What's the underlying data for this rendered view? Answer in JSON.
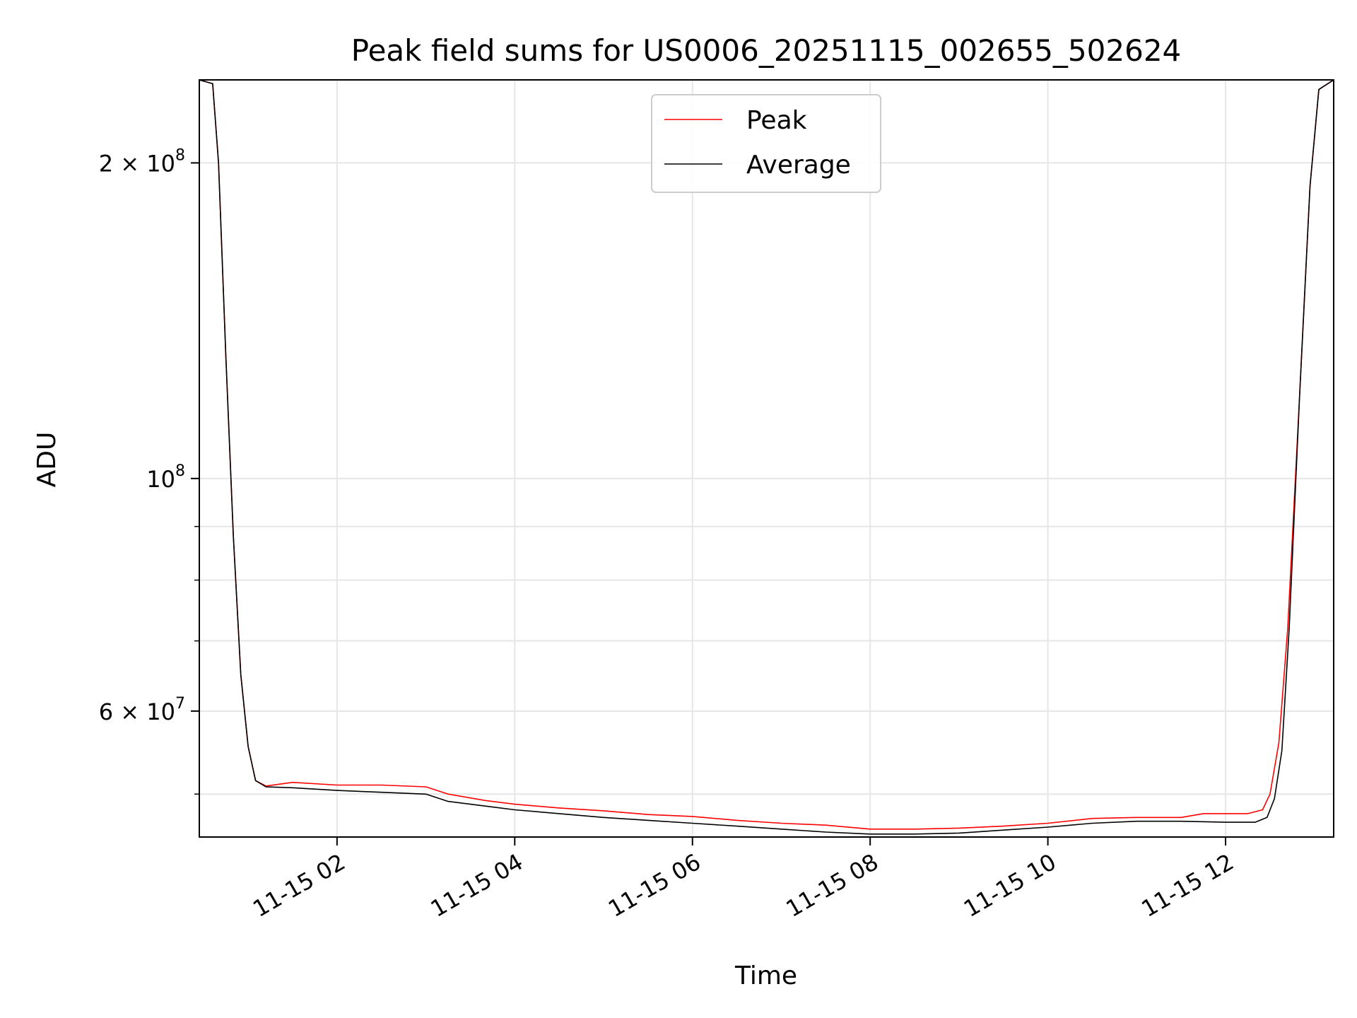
{
  "chart_data": {
    "type": "line",
    "title": "Peak field sums for US0006_20251115_002655_502624",
    "xlabel": "Time",
    "ylabel": "ADU",
    "y_scale": "log",
    "grid": true,
    "legend_placement": "upper center",
    "xlim": [
      "2025-11-15 00:27",
      "2025-11-15 13:13"
    ],
    "ylim": [
      45500000,
      240000000
    ],
    "x_ticks": [
      {
        "value": "2025-11-15 02:00",
        "label": "11-15 02"
      },
      {
        "value": "2025-11-15 04:00",
        "label": "11-15 04"
      },
      {
        "value": "2025-11-15 06:00",
        "label": "11-15 06"
      },
      {
        "value": "2025-11-15 08:00",
        "label": "11-15 08"
      },
      {
        "value": "2025-11-15 10:00",
        "label": "11-15 10"
      },
      {
        "value": "2025-11-15 12:00",
        "label": "11-15 12"
      }
    ],
    "y_ticks": [
      {
        "value": 200000000,
        "mantissa": "2 × 10",
        "exp": "8"
      },
      {
        "value": 100000000,
        "mantissa": "10",
        "exp": "8"
      },
      {
        "value": 60000000,
        "mantissa": "6 × 10",
        "exp": "7"
      }
    ],
    "y_minor_ticks": [
      50000000,
      70000000,
      80000000,
      90000000
    ],
    "series": [
      {
        "name": "Peak",
        "color": "#ff0000",
        "points": [
          [
            "2025-11-15 00:27",
            240000000
          ],
          [
            "2025-11-15 00:36",
            238000000
          ],
          [
            "2025-11-15 00:40",
            200000000
          ],
          [
            "2025-11-15 00:45",
            130000000
          ],
          [
            "2025-11-15 00:50",
            88000000
          ],
          [
            "2025-11-15 00:55",
            65000000
          ],
          [
            "2025-11-15 01:00",
            55500000
          ],
          [
            "2025-11-15 01:05",
            51500000
          ],
          [
            "2025-11-15 01:12",
            50900000
          ],
          [
            "2025-11-15 01:30",
            51300000
          ],
          [
            "2025-11-15 02:00",
            51000000
          ],
          [
            "2025-11-15 02:30",
            51000000
          ],
          [
            "2025-11-15 03:00",
            50800000
          ],
          [
            "2025-11-15 03:15",
            50000000
          ],
          [
            "2025-11-15 03:40",
            49300000
          ],
          [
            "2025-11-15 04:00",
            48900000
          ],
          [
            "2025-11-15 04:30",
            48500000
          ],
          [
            "2025-11-15 05:00",
            48200000
          ],
          [
            "2025-11-15 05:30",
            47800000
          ],
          [
            "2025-11-15 06:00",
            47600000
          ],
          [
            "2025-11-15 06:30",
            47200000
          ],
          [
            "2025-11-15 07:00",
            46900000
          ],
          [
            "2025-11-15 07:30",
            46700000
          ],
          [
            "2025-11-15 08:00",
            46300000
          ],
          [
            "2025-11-15 08:30",
            46300000
          ],
          [
            "2025-11-15 09:00",
            46400000
          ],
          [
            "2025-11-15 09:30",
            46600000
          ],
          [
            "2025-11-15 10:00",
            46900000
          ],
          [
            "2025-11-15 10:30",
            47400000
          ],
          [
            "2025-11-15 11:00",
            47500000
          ],
          [
            "2025-11-15 11:30",
            47500000
          ],
          [
            "2025-11-15 11:45",
            47900000
          ],
          [
            "2025-11-15 12:15",
            47900000
          ],
          [
            "2025-11-15 12:25",
            48300000
          ],
          [
            "2025-11-15 12:30",
            50000000
          ],
          [
            "2025-11-15 12:36",
            56000000
          ],
          [
            "2025-11-15 12:42",
            72000000
          ],
          [
            "2025-11-15 12:50",
            120000000
          ],
          [
            "2025-11-15 12:57",
            190000000
          ],
          [
            "2025-11-15 13:03",
            235000000
          ],
          [
            "2025-11-15 13:13",
            240000000
          ]
        ]
      },
      {
        "name": "Average",
        "color": "#000000",
        "points": [
          [
            "2025-11-15 00:27",
            240000000
          ],
          [
            "2025-11-15 00:36",
            238000000
          ],
          [
            "2025-11-15 00:40",
            200000000
          ],
          [
            "2025-11-15 00:45",
            130000000
          ],
          [
            "2025-11-15 00:50",
            88000000
          ],
          [
            "2025-11-15 00:55",
            65000000
          ],
          [
            "2025-11-15 01:00",
            55500000
          ],
          [
            "2025-11-15 01:05",
            51500000
          ],
          [
            "2025-11-15 01:12",
            50800000
          ],
          [
            "2025-11-15 01:30",
            50700000
          ],
          [
            "2025-11-15 02:00",
            50400000
          ],
          [
            "2025-11-15 02:30",
            50200000
          ],
          [
            "2025-11-15 03:00",
            50000000
          ],
          [
            "2025-11-15 03:15",
            49200000
          ],
          [
            "2025-11-15 03:40",
            48700000
          ],
          [
            "2025-11-15 04:00",
            48300000
          ],
          [
            "2025-11-15 04:30",
            47900000
          ],
          [
            "2025-11-15 05:00",
            47500000
          ],
          [
            "2025-11-15 05:30",
            47200000
          ],
          [
            "2025-11-15 06:00",
            46900000
          ],
          [
            "2025-11-15 06:30",
            46600000
          ],
          [
            "2025-11-15 07:00",
            46300000
          ],
          [
            "2025-11-15 07:30",
            46000000
          ],
          [
            "2025-11-15 08:00",
            45800000
          ],
          [
            "2025-11-15 08:30",
            45800000
          ],
          [
            "2025-11-15 09:00",
            45900000
          ],
          [
            "2025-11-15 09:30",
            46200000
          ],
          [
            "2025-11-15 10:00",
            46500000
          ],
          [
            "2025-11-15 10:30",
            46900000
          ],
          [
            "2025-11-15 11:00",
            47100000
          ],
          [
            "2025-11-15 11:30",
            47100000
          ],
          [
            "2025-11-15 12:00",
            47000000
          ],
          [
            "2025-11-15 12:20",
            47000000
          ],
          [
            "2025-11-15 12:28",
            47500000
          ],
          [
            "2025-11-15 12:33",
            49500000
          ],
          [
            "2025-11-15 12:38",
            55000000
          ],
          [
            "2025-11-15 12:43",
            72000000
          ],
          [
            "2025-11-15 12:50",
            120000000
          ],
          [
            "2025-11-15 12:57",
            190000000
          ],
          [
            "2025-11-15 13:03",
            235000000
          ],
          [
            "2025-11-15 13:13",
            240000000
          ]
        ]
      }
    ]
  }
}
